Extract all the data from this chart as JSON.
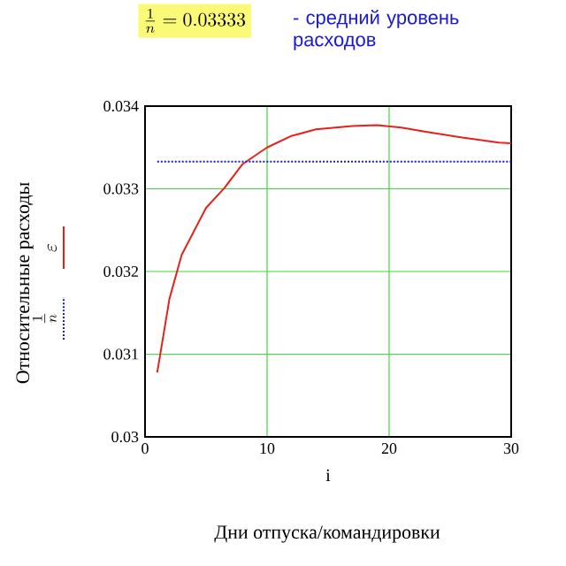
{
  "chart_data": {
    "type": "line",
    "title": "\\frac{1}{n} = 0.03333",
    "subtitle": "- средний уровень расходов",
    "xlabel": "i",
    "ylabel": "Относительные расходы",
    "annotations": [
      "Дни отпуска/командировки"
    ],
    "x": [
      1,
      2,
      3,
      5,
      6.5,
      8,
      10,
      12,
      14,
      17,
      19,
      21,
      23,
      26,
      29,
      30
    ],
    "series": [
      {
        "name": "\\varepsilon",
        "color": "#e8201c",
        "values": [
          0.03078,
          0.03167,
          0.0322,
          0.03277,
          0.03301,
          0.0333,
          0.0335,
          0.03364,
          0.03372,
          0.03376,
          0.03377,
          0.03374,
          0.03369,
          0.03362,
          0.03356,
          0.03355
        ]
      },
      {
        "name": "\\frac{1}{n}",
        "color": "#1a1ad6",
        "line_style": "dotted",
        "x": [
          1,
          30
        ],
        "values": [
          0.03333,
          0.03333
        ]
      }
    ],
    "xlim": [
      0,
      30
    ],
    "xticks": [
      0,
      10,
      20,
      30
    ],
    "ylim": [
      0.03,
      0.034
    ],
    "yticks": [
      0.03,
      0.031,
      0.032,
      0.033,
      0.034
    ],
    "grid": true,
    "legend": "left"
  }
}
